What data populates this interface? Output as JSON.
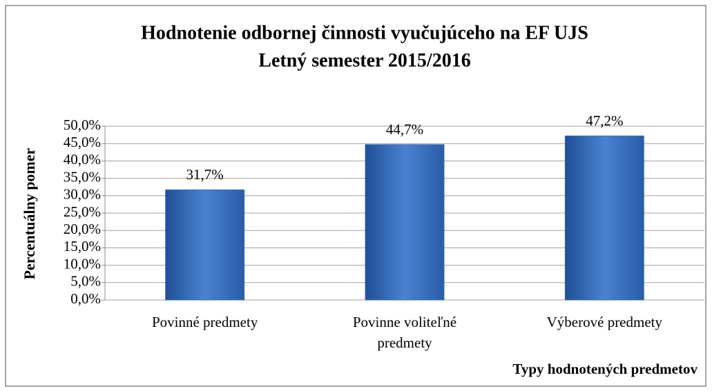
{
  "chart_data": {
    "type": "bar",
    "title": "Hodnotenie odbornej činnosti vyučujúceho na EF UJS",
    "subtitle": "Letný semester 2015/2016",
    "y_label": "Percentuálny pomer",
    "x_label": "Typy hodnotených predmetov",
    "categories": [
      "Povinné predmety",
      "Povinne voliteľné predmety",
      "Výberové predmety"
    ],
    "values": [
      31.7,
      44.7,
      47.2
    ],
    "value_labels": [
      "31,7%",
      "44,7%",
      "47,2%"
    ],
    "color": "#3a6fbd",
    "ylim": [
      0,
      50
    ],
    "yticks": [
      {
        "value": 0,
        "label": "0,0%"
      },
      {
        "value": 5,
        "label": "5,0%"
      },
      {
        "value": 10,
        "label": "10,0%"
      },
      {
        "value": 15,
        "label": "15,0%"
      },
      {
        "value": 20,
        "label": "20,0%"
      },
      {
        "value": 25,
        "label": "25,0%"
      },
      {
        "value": 30,
        "label": "30,0%"
      },
      {
        "value": 35,
        "label": "35,0%"
      },
      {
        "value": 40,
        "label": "40,0%"
      },
      {
        "value": 45,
        "label": "45,0%"
      },
      {
        "value": 50,
        "label": "50,0%"
      }
    ],
    "grid": true
  }
}
